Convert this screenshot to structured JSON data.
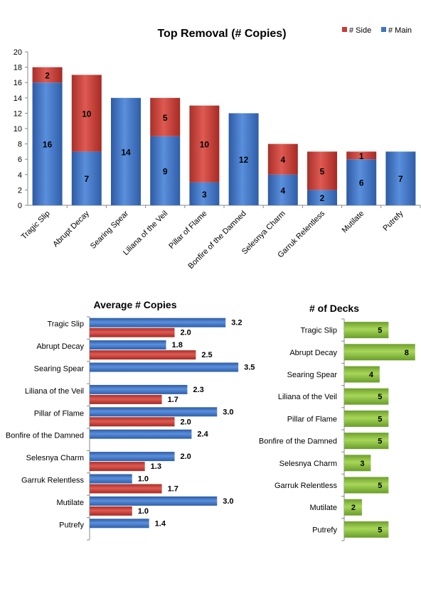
{
  "colors": {
    "main": "#3d74c7",
    "side": "#cc3a33",
    "decks": "#8cc43c",
    "grid": "#888888"
  },
  "chart_data": [
    {
      "type": "bar",
      "stacked": true,
      "title": "Top Removal (# Copies)",
      "categories": [
        "Tragic Slip",
        "Abrupt Decay",
        "Searing Spear",
        "Liliana of the Veil",
        "Pillar of Flame",
        "Bonfire of the Damned",
        "Selesnya Charm",
        "Garruk Relentless",
        "Mutilate",
        "Putrefy"
      ],
      "series": [
        {
          "name": "# Main",
          "values": [
            16,
            7,
            14,
            9,
            3,
            12,
            4,
            2,
            6,
            7
          ]
        },
        {
          "name": "# Side",
          "values": [
            2,
            10,
            null,
            5,
            10,
            null,
            4,
            5,
            1,
            null
          ]
        }
      ],
      "ylim": [
        0,
        20
      ],
      "yticks": [
        "0",
        "2",
        "4",
        "6",
        "8",
        "10",
        "12",
        "14",
        "16",
        "18",
        "20"
      ],
      "legend": "top-right",
      "data_labels": true
    },
    {
      "type": "bar",
      "orientation": "horizontal",
      "title": "Average # Copies",
      "categories": [
        "Tragic Slip",
        "Abrupt Decay",
        "Searing Spear",
        "Liliana of the Veil",
        "Pillar of Flame",
        "Bonfire of the Damned",
        "Selesnya Charm",
        "Garruk Relentless",
        "Mutilate",
        "Putrefy"
      ],
      "series": [
        {
          "values": [
            3.2,
            1.8,
            3.5,
            2.3,
            3.0,
            2.4,
            2.0,
            1.0,
            3.0,
            1.4
          ],
          "labels": [
            "3.2",
            "1.8",
            "3.5",
            "2.3",
            "3.0",
            "2.4",
            "2.0",
            "1.0",
            "3.0",
            "1.4"
          ]
        },
        {
          "values": [
            2.0,
            2.5,
            null,
            1.7,
            2.0,
            null,
            1.3,
            1.7,
            1.0,
            null
          ],
          "labels": [
            "2.0",
            "2.5",
            null,
            "1.7",
            "2.0",
            null,
            "1.3",
            "1.7",
            "1.0",
            null
          ]
        }
      ],
      "xlim": [
        0,
        4
      ],
      "data_labels": true
    },
    {
      "type": "bar",
      "orientation": "horizontal",
      "title": "# of Decks",
      "categories": [
        "Tragic Slip",
        "Abrupt Decay",
        "Searing Spear",
        "Liliana of the Veil",
        "Pillar of Flame",
        "Bonfire of the Damned",
        "Selesnya Charm",
        "Garruk Relentless",
        "Mutilate",
        "Putrefy"
      ],
      "values": [
        5,
        8,
        4,
        5,
        5,
        5,
        3,
        5,
        2,
        5
      ],
      "xlim": [
        0,
        8.5
      ],
      "data_labels": true
    }
  ]
}
